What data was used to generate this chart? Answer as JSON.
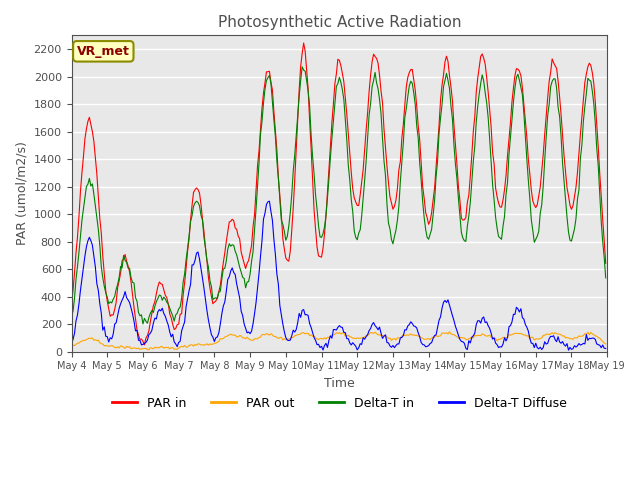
{
  "title": "Photosynthetic Active Radiation",
  "ylabel": "PAR (umol/m2/s)",
  "xlabel": "Time",
  "ylim": [
    0,
    2300
  ],
  "yticks": [
    0,
    200,
    400,
    600,
    800,
    1000,
    1200,
    1400,
    1600,
    1800,
    2000,
    2200
  ],
  "xtick_labels": [
    "May 4",
    "May 5",
    "May 6",
    "May 7",
    "May 8",
    "May 9",
    "May 10",
    "May 11",
    "May 12",
    "May 13",
    "May 14",
    "May 15",
    "May 16",
    "May 17",
    "May 18",
    "May 19"
  ],
  "legend_labels": [
    "PAR in",
    "PAR out",
    "Delta-T in",
    "Delta-T Diffuse"
  ],
  "legend_colors": [
    "red",
    "orange",
    "green",
    "blue"
  ],
  "watermark_text": "VR_met",
  "watermark_bg": "#FFFFC0",
  "watermark_border": "#8B8B00",
  "watermark_color": "#8B0000",
  "background_color": "#E8E8E8",
  "grid_color": "white",
  "title_color": "#505050",
  "axis_color": "#505050",
  "n_days": 15,
  "pts_per_day": 24,
  "day_peaks_in": [
    1700,
    700,
    500,
    1200,
    950,
    2050,
    2200,
    2100,
    2150,
    2050,
    2100,
    2150,
    2050,
    2100,
    2100
  ],
  "day_widths_in": [
    0.28,
    0.2,
    0.22,
    0.25,
    0.28,
    0.3,
    0.22,
    0.3,
    0.3,
    0.3,
    0.28,
    0.3,
    0.3,
    0.3,
    0.3
  ],
  "day_peaks_out": [
    90,
    30,
    25,
    50,
    120,
    120,
    130,
    130,
    130,
    120,
    130,
    120,
    130,
    130,
    130
  ],
  "day_peaks_dt": [
    1250,
    650,
    400,
    1100,
    780,
    2000,
    2050,
    1980,
    2000,
    1960,
    2000,
    1970,
    2000,
    1980,
    1980
  ],
  "day_peaks_diff": [
    820,
    400,
    300,
    700,
    600,
    1100,
    280,
    180,
    200,
    200,
    360,
    250,
    300,
    100,
    100
  ]
}
